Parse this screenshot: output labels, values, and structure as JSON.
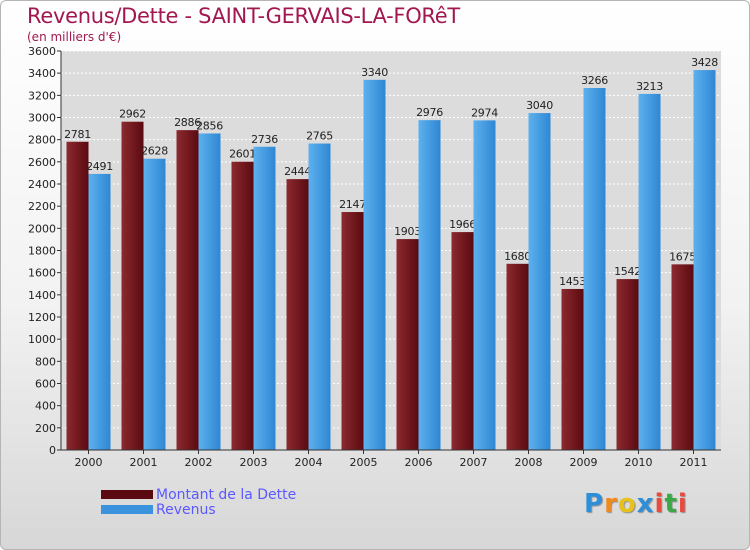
{
  "header": {
    "title": "Revenus/Dette - SAINT-GERVAIS-LA-FORêT",
    "subtitle": "(en milliers d'€)"
  },
  "chart_data": {
    "type": "bar",
    "categories": [
      "2000",
      "2001",
      "2002",
      "2003",
      "2004",
      "2005",
      "2006",
      "2007",
      "2008",
      "2009",
      "2010",
      "2011"
    ],
    "series": [
      {
        "name": "Montant de la Dette",
        "color": "#7a1620",
        "values": [
          2781,
          2962,
          2886,
          2601,
          2444,
          2147,
          1903,
          1966,
          1680,
          1453,
          1542,
          1675
        ],
        "labels": [
          "2781",
          "2962",
          "2886",
          "2601",
          "2444",
          "2147",
          "1903",
          "1966",
          "1680",
          "1453",
          "1542",
          "1675"
        ]
      },
      {
        "name": "Revenus",
        "color": "#4aa3e6",
        "values": [
          2491,
          2628,
          2856,
          2736,
          2765,
          3340,
          2976,
          2974,
          3040,
          3266,
          3213,
          3428
        ],
        "labels": [
          "2491",
          "2628",
          "2856",
          "2736",
          "2765",
          "3340",
          "2976",
          "2974",
          "3040",
          "3266",
          "3213",
          "3428"
        ]
      }
    ],
    "ylim": [
      0,
      3600
    ],
    "yticks": [
      "0",
      "200",
      "400",
      "600",
      "800",
      "1000",
      "1200",
      "1400",
      "1600",
      "1800",
      "2000",
      "2200",
      "2400",
      "2600",
      "2800",
      "3000",
      "3200",
      "3400",
      "3600"
    ],
    "grid": true,
    "legend": "bottom-left"
  },
  "legend": {
    "items": [
      {
        "label": "Montant de la Dette",
        "color": "#5a0a10"
      },
      {
        "label": "Revenus",
        "color": "#3b92dd"
      }
    ]
  },
  "logo": {
    "letters": [
      "P",
      "r",
      "o",
      "x",
      "i",
      "t",
      "i"
    ],
    "colors": [
      "#2e8fd8",
      "#f08a1c",
      "#e8c21c",
      "#2e8fd8",
      "#e84a3c",
      "#3aa845",
      "#e84a3c"
    ]
  }
}
